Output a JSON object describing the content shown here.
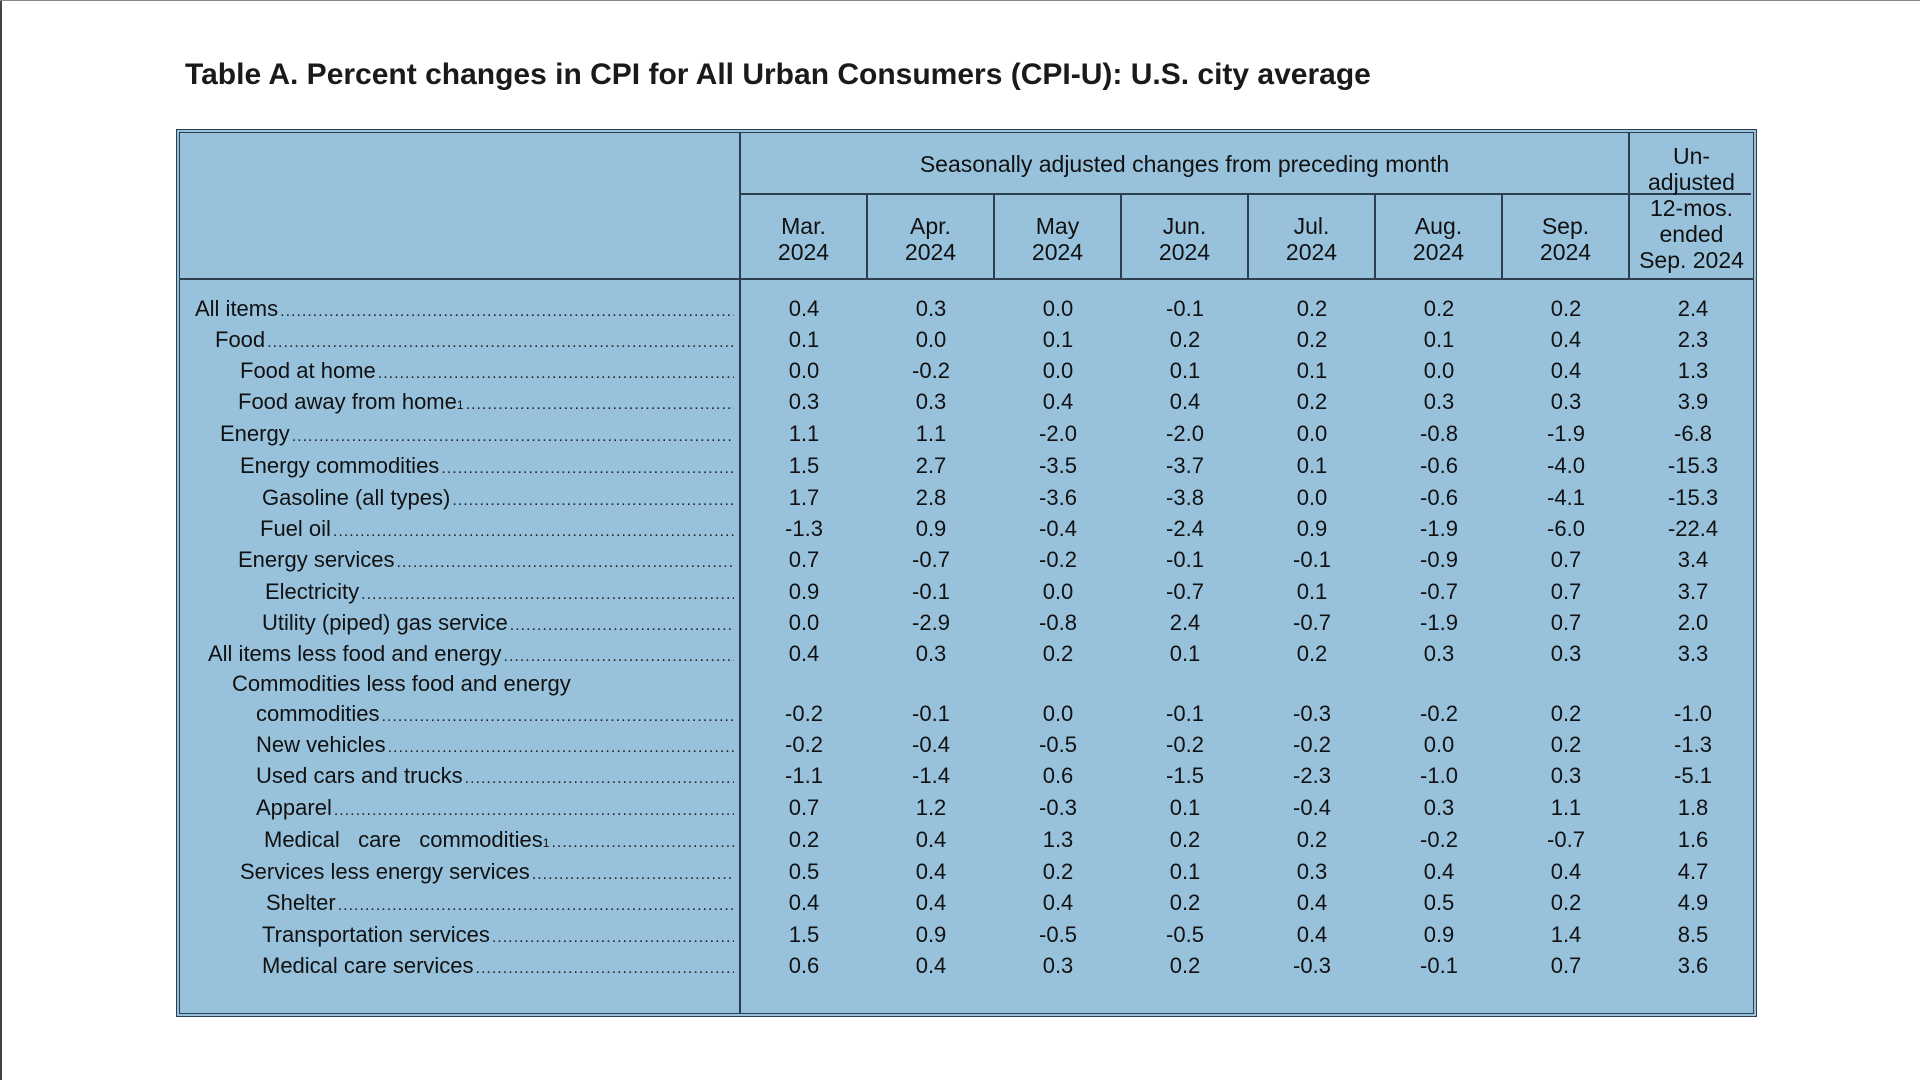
{
  "title": "Table A. Percent changes in CPI for All Urban Consumers (CPI-U): U.S. city average",
  "header": {
    "group_label": "Seasonally adjusted changes from preceding month",
    "months": [
      {
        "line1": "Mar.",
        "line2": "2024"
      },
      {
        "line1": "Apr.",
        "line2": "2024"
      },
      {
        "line1": "May",
        "line2": "2024"
      },
      {
        "line1": "Jun.",
        "line2": "2024"
      },
      {
        "line1": "Jul.",
        "line2": "2024"
      },
      {
        "line1": "Aug.",
        "line2": "2024"
      },
      {
        "line1": "Sep.",
        "line2": "2024"
      }
    ],
    "unadjusted_lines": [
      "Un-",
      "adjusted",
      "12-mos.",
      "ended",
      "Sep. 2024"
    ]
  },
  "rows": [
    {
      "label": "All items",
      "values": [
        "0.4",
        "0.3",
        "0.0",
        "-0.1",
        "0.2",
        "0.2",
        "0.2",
        "2.4"
      ]
    },
    {
      "label": "Food",
      "values": [
        "0.1",
        "0.0",
        "0.1",
        "0.2",
        "0.2",
        "0.1",
        "0.4",
        "2.3"
      ]
    },
    {
      "label": "Food at home",
      "values": [
        "0.0",
        "-0.2",
        "0.0",
        "0.1",
        "0.1",
        "0.0",
        "0.4",
        "1.3"
      ]
    },
    {
      "label": "Food away from home",
      "note": "1",
      "values": [
        "0.3",
        "0.3",
        "0.4",
        "0.4",
        "0.2",
        "0.3",
        "0.3",
        "3.9"
      ]
    },
    {
      "label": "Energy",
      "values": [
        "1.1",
        "1.1",
        "-2.0",
        "-2.0",
        "0.0",
        "-0.8",
        "-1.9",
        "-6.8"
      ]
    },
    {
      "label": "Energy commodities",
      "values": [
        "1.5",
        "2.7",
        "-3.5",
        "-3.7",
        "0.1",
        "-0.6",
        "-4.0",
        "-15.3"
      ]
    },
    {
      "label": "Gasoline (all types)",
      "values": [
        "1.7",
        "2.8",
        "-3.6",
        "-3.8",
        "0.0",
        "-0.6",
        "-4.1",
        "-15.3"
      ]
    },
    {
      "label": "Fuel oil",
      "values": [
        "-1.3",
        "0.9",
        "-0.4",
        "-2.4",
        "0.9",
        "-1.9",
        "-6.0",
        "-22.4"
      ]
    },
    {
      "label": "Energy services",
      "values": [
        "0.7",
        "-0.7",
        "-0.2",
        "-0.1",
        "-0.1",
        "-0.9",
        "0.7",
        "3.4"
      ]
    },
    {
      "label": "Electricity",
      "values": [
        "0.9",
        "-0.1",
        "0.0",
        "-0.7",
        "0.1",
        "-0.7",
        "0.7",
        "3.7"
      ]
    },
    {
      "label": "Utility (piped) gas service",
      "values": [
        "0.0",
        "-2.9",
        "-0.8",
        "2.4",
        "-0.7",
        "-1.9",
        "0.7",
        "2.0"
      ]
    },
    {
      "label": "All items less food and energy",
      "values": [
        "0.4",
        "0.3",
        "0.2",
        "0.1",
        "0.2",
        "0.3",
        "0.3",
        "3.3"
      ]
    },
    {
      "label": "commodities",
      "label_line1": "Commodities less food and energy",
      "values": [
        "-0.2",
        "-0.1",
        "0.0",
        "-0.1",
        "-0.3",
        "-0.2",
        "0.2",
        "-1.0"
      ]
    },
    {
      "label": "New vehicles",
      "values": [
        "-0.2",
        "-0.4",
        "-0.5",
        "-0.2",
        "-0.2",
        "0.0",
        "0.2",
        "-1.3"
      ]
    },
    {
      "label": "Used cars and trucks",
      "values": [
        "-1.1",
        "-1.4",
        "0.6",
        "-1.5",
        "-2.3",
        "-1.0",
        "0.3",
        "-5.1"
      ]
    },
    {
      "label": "Apparel",
      "values": [
        "0.7",
        "1.2",
        "-0.3",
        "0.1",
        "-0.4",
        "0.3",
        "1.1",
        "1.8"
      ]
    },
    {
      "label": "Medical   care   commodities",
      "note": "1",
      "values": [
        "0.2",
        "0.4",
        "1.3",
        "0.2",
        "0.2",
        "-0.2",
        "-0.7",
        "1.6"
      ]
    },
    {
      "label": "Services less energy services",
      "values": [
        "0.5",
        "0.4",
        "0.2",
        "0.1",
        "0.3",
        "0.4",
        "0.4",
        "4.7"
      ]
    },
    {
      "label": "Shelter",
      "values": [
        "0.4",
        "0.4",
        "0.4",
        "0.2",
        "0.4",
        "0.5",
        "0.2",
        "4.9"
      ]
    },
    {
      "label": "Transportation services",
      "values": [
        "1.5",
        "0.9",
        "-0.5",
        "-0.5",
        "0.4",
        "0.9",
        "1.4",
        "8.5"
      ]
    },
    {
      "label": "Medical care services",
      "values": [
        "0.6",
        "0.4",
        "0.3",
        "0.2",
        "-0.3",
        "-0.1",
        "0.7",
        "3.6"
      ]
    }
  ]
}
